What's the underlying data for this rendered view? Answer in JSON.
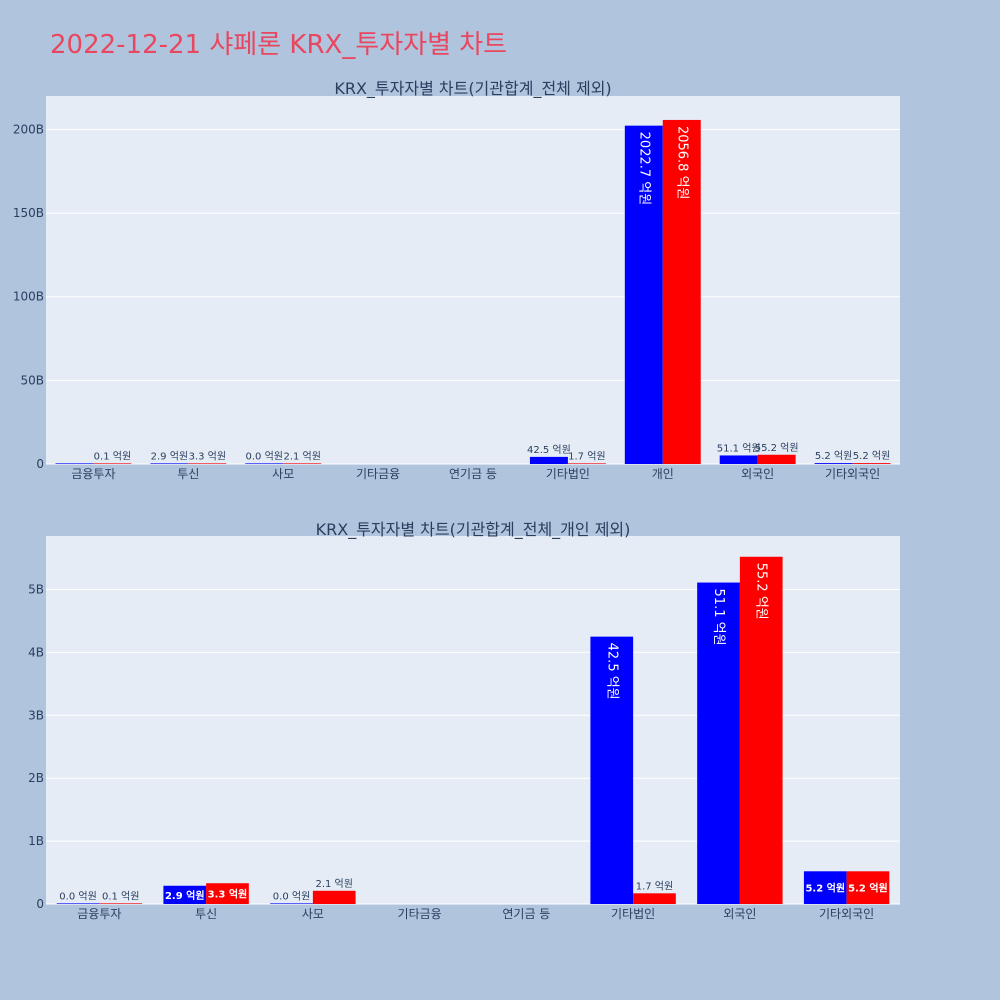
{
  "title": "2022-12-21 샤페론 KRX_투자자별 차트",
  "colors": {
    "background": "#b0c4de",
    "plot_bg": "#e5ecf6",
    "title": "#e8475f",
    "buy": "#0000ff",
    "sell": "#ff0000"
  },
  "chart_data": [
    {
      "type": "bar",
      "title": "KRX_투자자별 차트(기관합계_전체 제외)",
      "categories": [
        "금융투자",
        "투신",
        "사모",
        "기타금융",
        "연기금 등",
        "기타법인",
        "개인",
        "외국인",
        "기타외국인"
      ],
      "ylim": [
        0,
        220000000000
      ],
      "yticks": [
        0,
        50000000000,
        100000000000,
        150000000000,
        200000000000
      ],
      "ytick_labels": [
        "0",
        "50B",
        "100B",
        "150B",
        "200B"
      ],
      "series": [
        {
          "color": "#0000ff",
          "values": [
            0,
            290000000,
            0,
            null,
            null,
            4250000000,
            202270000000,
            5110000000,
            520000000
          ],
          "labels": [
            "",
            "2.9 억원",
            "0.0 억원",
            "",
            "",
            "42.5 억원",
            "2022.7 억원",
            "51.1 억원",
            "5.2 억원"
          ]
        },
        {
          "color": "#ff0000",
          "values": [
            10000000,
            330000000,
            210000000,
            null,
            null,
            170000000,
            205680000000,
            5520000000,
            520000000
          ],
          "labels": [
            "0.1 억원",
            "3.3 억원",
            "2.1 억원",
            "",
            "",
            "1.7 억원",
            "2056.8 억원",
            "55.2 억원",
            "5.2 억원"
          ]
        }
      ],
      "grid": true
    },
    {
      "type": "bar",
      "title": "KRX_투자자별 차트(기관합계_전체_개인 제외)",
      "categories": [
        "금융투자",
        "투신",
        "사모",
        "기타금융",
        "연기금 등",
        "기타법인",
        "외국인",
        "기타외국인"
      ],
      "ylim": [
        0,
        5850000000
      ],
      "yticks": [
        0,
        1000000000,
        2000000000,
        3000000000,
        4000000000,
        5000000000
      ],
      "ytick_labels": [
        "0",
        "1B",
        "2B",
        "3B",
        "4B",
        "5B"
      ],
      "series": [
        {
          "color": "#0000ff",
          "values": [
            0,
            290000000,
            0,
            null,
            null,
            4250000000,
            5110000000,
            520000000
          ],
          "labels": [
            "0.0 억원",
            "2.9 억원",
            "0.0 억원",
            "",
            "",
            "42.5 억원",
            "51.1 억원",
            "5.2 억원"
          ]
        },
        {
          "color": "#ff0000",
          "values": [
            10000000,
            330000000,
            210000000,
            null,
            null,
            170000000,
            5520000000,
            520000000
          ],
          "labels": [
            "0.1 억원",
            "3.3 억원",
            "2.1 억원",
            "",
            "",
            "1.7 억원",
            "55.2 억원",
            "5.2 억원"
          ]
        }
      ],
      "grid": true
    }
  ]
}
